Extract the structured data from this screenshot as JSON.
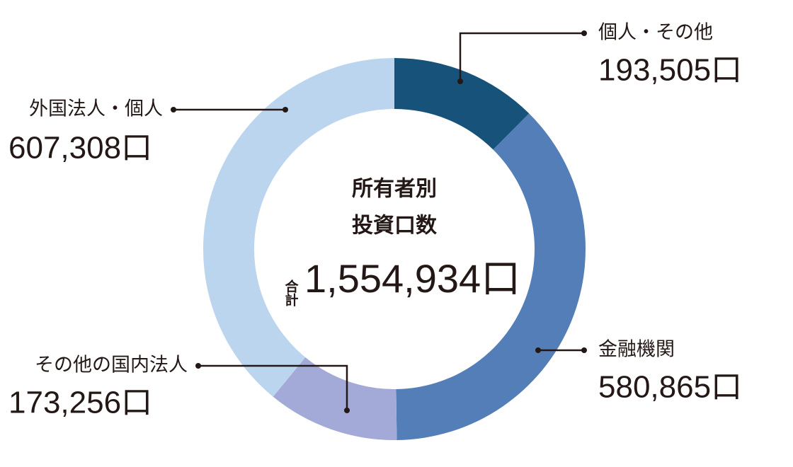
{
  "chart_data": {
    "type": "donut",
    "center_title": [
      "所有者別",
      "投資口数"
    ],
    "total_caption": "合計",
    "total_label": "1,554,934口",
    "categories": [
      "個人・その他",
      "金融機関",
      "その他の国内法人",
      "外国法人・個人"
    ],
    "values": [
      193505,
      580865,
      173256,
      607308
    ],
    "value_labels": [
      "193,505口",
      "580,865口",
      "173,256口",
      "607,308口"
    ],
    "colors": [
      "#17527a",
      "#547eb8",
      "#a3aad8",
      "#bcd5ee"
    ]
  }
}
